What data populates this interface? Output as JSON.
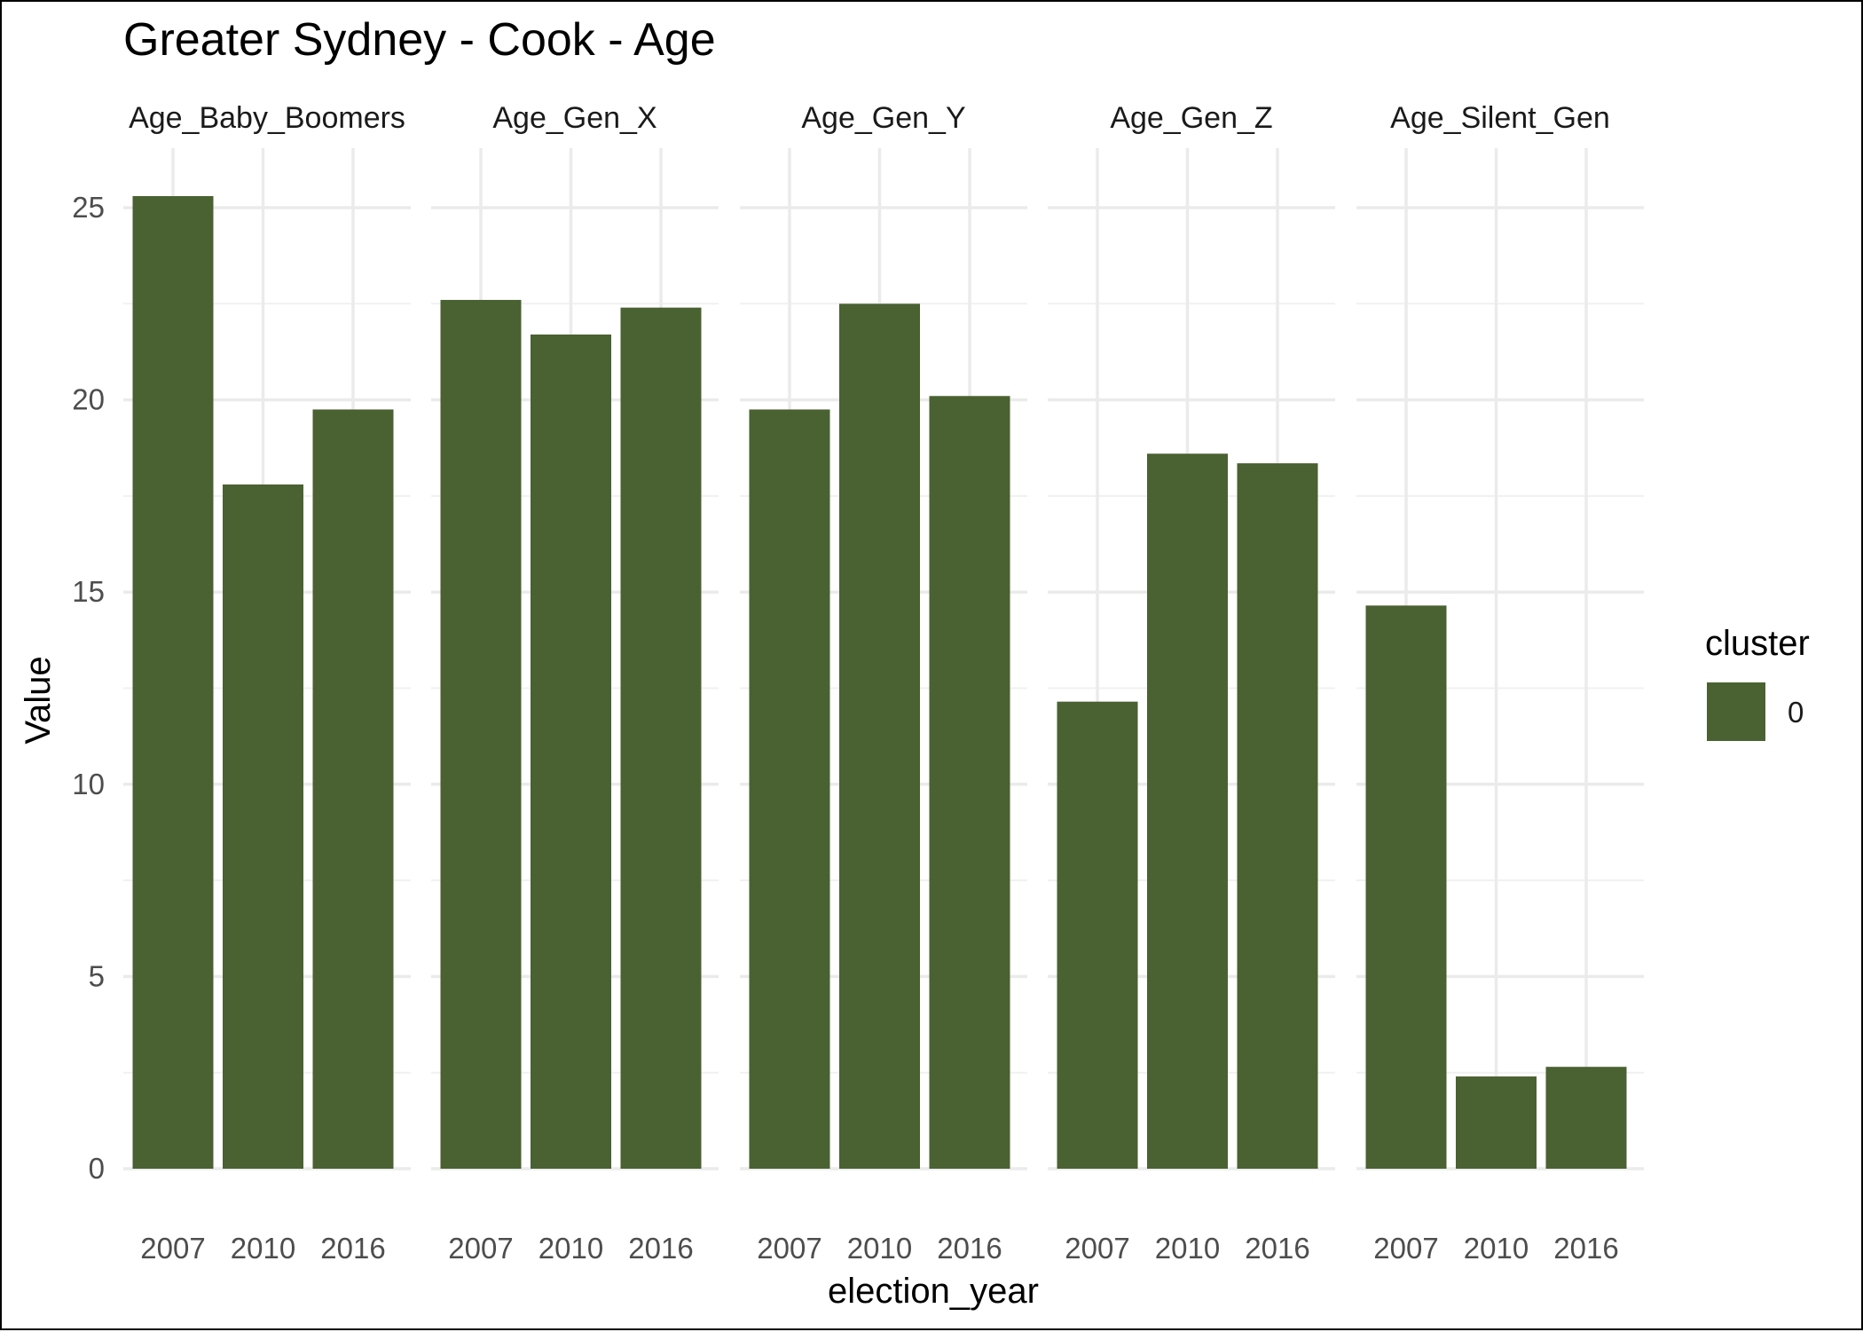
{
  "chart_data": {
    "type": "bar",
    "title": "Greater Sydney - Cook - Age",
    "xlabel": "election_year",
    "ylabel": "Value",
    "ylim": [
      0,
      27
    ],
    "yticks": [
      0,
      5,
      10,
      15,
      20,
      25
    ],
    "categories": [
      "2007",
      "2010",
      "2016"
    ],
    "grid": true,
    "legend": {
      "title": "cluster",
      "placement": "right",
      "entries": [
        {
          "label": "0",
          "color": "#4a6132"
        }
      ]
    },
    "bar_color": "#4a6132",
    "facets": [
      {
        "name": "Age_Baby_Boomers",
        "values": [
          25.3,
          17.8,
          19.75
        ]
      },
      {
        "name": "Age_Gen_X",
        "values": [
          22.6,
          21.7,
          22.4
        ]
      },
      {
        "name": "Age_Gen_Y",
        "values": [
          19.75,
          22.5,
          20.1
        ]
      },
      {
        "name": "Age_Gen_Z",
        "values": [
          12.15,
          18.6,
          18.35
        ]
      },
      {
        "name": "Age_Silent_Gen",
        "values": [
          14.65,
          2.4,
          2.65
        ]
      }
    ]
  }
}
